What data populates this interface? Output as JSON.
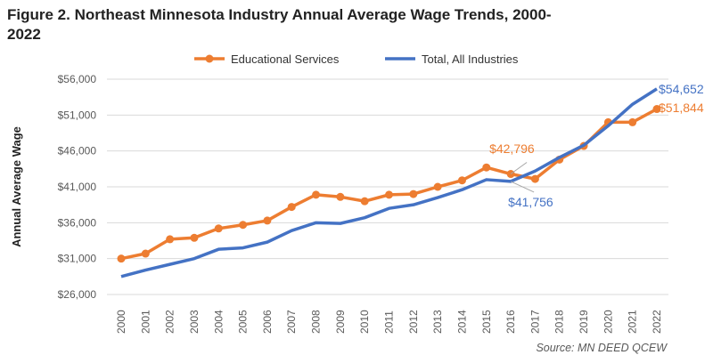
{
  "chart_data": {
    "type": "line",
    "title": "Figure 2. Northeast Minnesota Industry Annual Average Wage Trends, 2000-2022",
    "ylabel": "Annual Average Wage",
    "xlabel": "",
    "ylim": [
      26000,
      56000
    ],
    "yticks": [
      26000,
      31000,
      36000,
      41000,
      46000,
      51000,
      56000
    ],
    "ytick_labels": [
      "$26,000",
      "$31,000",
      "$36,000",
      "$41,000",
      "$46,000",
      "$51,000",
      "$56,000"
    ],
    "categories": [
      "2000",
      "2001",
      "2002",
      "2003",
      "2004",
      "2005",
      "2006",
      "2007",
      "2008",
      "2009",
      "2010",
      "2011",
      "2012",
      "2013",
      "2014",
      "2015",
      "2016",
      "2017",
      "2018",
      "2019",
      "2020",
      "2021",
      "2022"
    ],
    "grid": true,
    "legend_position": "top",
    "series": [
      {
        "name": "Educational Services",
        "color": "#ED7D31",
        "markers": true,
        "values": [
          31000,
          31700,
          33700,
          33900,
          35200,
          35700,
          36300,
          38200,
          39900,
          39600,
          39000,
          39900,
          40000,
          41000,
          41900,
          43700,
          42796,
          42100,
          44800,
          46700,
          50000,
          50000,
          51844
        ],
        "annotations": [
          {
            "index": 16,
            "label": "$42,796"
          },
          {
            "index": 22,
            "label": "$51,844"
          }
        ]
      },
      {
        "name": "Total, All Industries",
        "color": "#4472C4",
        "markers": false,
        "values": [
          28500,
          29400,
          30200,
          31000,
          32300,
          32500,
          33300,
          34900,
          36000,
          35900,
          36700,
          38000,
          38500,
          39500,
          40600,
          42000,
          41756,
          43200,
          45100,
          46800,
          49500,
          52500,
          54652
        ],
        "annotations": [
          {
            "index": 16,
            "label": "$41,756"
          },
          {
            "index": 22,
            "label": "$54,652"
          }
        ]
      }
    ],
    "source": "Source:  MN DEED QCEW"
  }
}
